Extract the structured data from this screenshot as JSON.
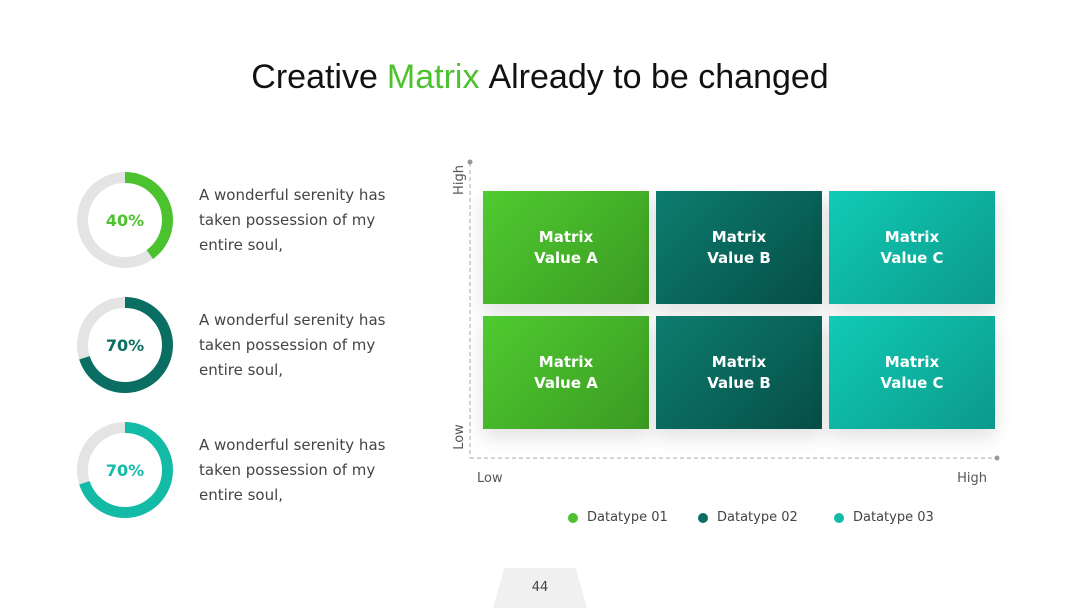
{
  "title": {
    "before": "Creative",
    "highlight": "Matrix",
    "after": "Already to be changed"
  },
  "gauges": [
    {
      "value": 40,
      "label": "40%",
      "color": "#4cc22e",
      "text": "A wonderful serenity has taken possession of my entire soul,"
    },
    {
      "value": 70,
      "label": "70%",
      "color": "#0b6e62",
      "text": "A wonderful serenity has taken possession of my entire soul,"
    },
    {
      "value": 70,
      "label": "70%",
      "color": "#13bba6",
      "text": "A wonderful serenity has taken possession of my entire soul,"
    }
  ],
  "matrix": {
    "y_axis": {
      "high": "High",
      "low": "Low"
    },
    "x_axis": {
      "low": "Low",
      "high": "High"
    },
    "rows": [
      [
        "Matrix Value A",
        "Matrix Value B",
        "Matrix Value C"
      ],
      [
        "Matrix Value A",
        "Matrix Value B",
        "Matrix Value C"
      ]
    ],
    "legend": [
      {
        "name": "Datatype 01",
        "color": "#4cc22e"
      },
      {
        "name": "Datatype 02",
        "color": "#0b6e62"
      },
      {
        "name": "Datatype 03",
        "color": "#13bba6"
      }
    ]
  },
  "page_number": "44"
}
